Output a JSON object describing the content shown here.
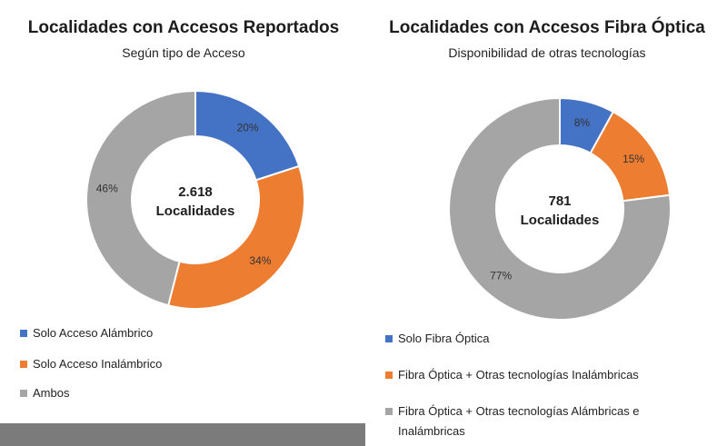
{
  "colors": {
    "blue": "#4472c4",
    "orange": "#ed7d31",
    "gray": "#a5a5a5",
    "background": "#ffffff"
  },
  "chart_data": [
    {
      "type": "pie",
      "title": "Localidades con Accesos Reportados",
      "subtitle": "Según tipo de Acceso",
      "center_value": "2.618",
      "center_label": "Localidades",
      "categories": [
        "Solo Acceso Alámbrico",
        "Solo Acceso Inalámbrico",
        "Ambos"
      ],
      "values": [
        20,
        34,
        46
      ],
      "data_labels": [
        "20%",
        "34%",
        "46%"
      ],
      "colors": [
        "#4472c4",
        "#ed7d31",
        "#a5a5a5"
      ],
      "donut": true,
      "legend": "bottom"
    },
    {
      "type": "pie",
      "title": "Localidades con Accesos Fibra Óptica",
      "subtitle": "Disponibilidad de otras tecnologías",
      "center_value": "781",
      "center_label": "Localidades",
      "categories": [
        "Solo Fibra Óptica",
        "Fibra Óptica + Otras tecnologías Inalámbricas",
        "Fibra Óptica + Otras tecnologías Alámbricas e Inalámbricas"
      ],
      "values": [
        8,
        15,
        77
      ],
      "data_labels": [
        "8%",
        "15%",
        "77%"
      ],
      "colors": [
        "#4472c4",
        "#ed7d31",
        "#a5a5a5"
      ],
      "donut": true,
      "legend": "bottom"
    }
  ]
}
